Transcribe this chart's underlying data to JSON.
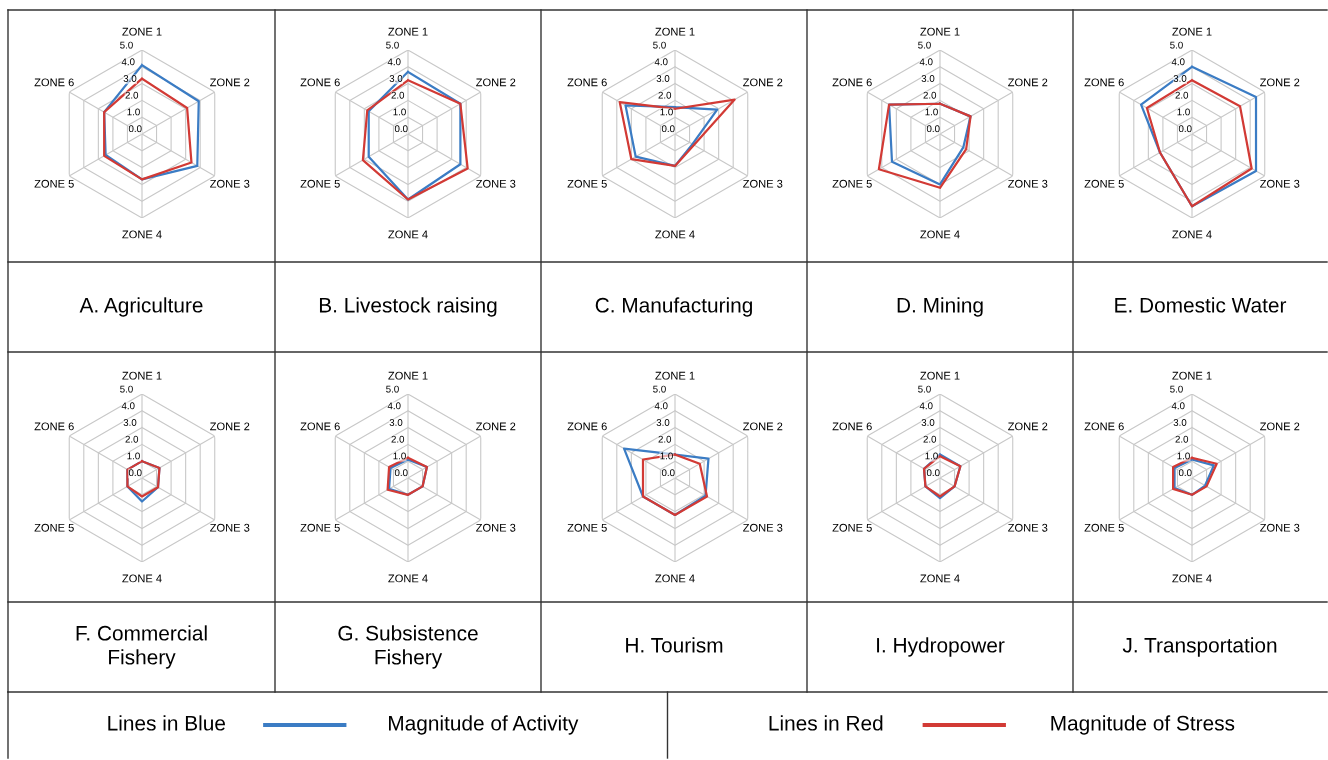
{
  "chart_data": [
    {
      "type": "radar",
      "title": "A. Agriculture",
      "categories": [
        "ZONE 1",
        "ZONE 2",
        "ZONE 3",
        "ZONE 4",
        "ZONE 5",
        "ZONE 6"
      ],
      "ylim": [
        0,
        5
      ],
      "yticks": [
        {
          "value": 0,
          "label": "0.0"
        },
        {
          "value": 1,
          "label": "1.0"
        },
        {
          "value": 2,
          "label": "2.0"
        },
        {
          "value": 3,
          "label": "3.0"
        },
        {
          "value": 4,
          "label": "4.0"
        },
        {
          "value": 5,
          "label": "5.0"
        }
      ],
      "grid": true,
      "series": [
        {
          "color": "#3b7cc4",
          "values": [
            4.1,
            3.9,
            3.8,
            2.7,
            2.5,
            2.6
          ]
        },
        {
          "color": "#d23a35",
          "values": [
            3.3,
            3.1,
            3.4,
            2.7,
            2.6,
            2.6
          ]
        }
      ]
    },
    {
      "type": "radar",
      "title": "B. Livestock raising",
      "categories": [
        "ZONE 1",
        "ZONE 2",
        "ZONE 3",
        "ZONE 4",
        "ZONE 5",
        "ZONE 6"
      ],
      "ylim": [
        0,
        5
      ],
      "yticks": [
        {
          "value": 0,
          "label": "0.0"
        },
        {
          "value": 1,
          "label": "1.0"
        },
        {
          "value": 2,
          "label": "2.0"
        },
        {
          "value": 3,
          "label": "3.0"
        },
        {
          "value": 4,
          "label": "4.0"
        },
        {
          "value": 5,
          "label": "5.0"
        }
      ],
      "grid": true,
      "series": [
        {
          "color": "#3b7cc4",
          "values": [
            3.7,
            3.6,
            3.6,
            3.9,
            2.7,
            2.7
          ]
        },
        {
          "color": "#d23a35",
          "values": [
            3.2,
            3.6,
            4.1,
            3.9,
            3.1,
            2.8
          ]
        }
      ]
    },
    {
      "type": "radar",
      "title": "C. Manufacturing",
      "categories": [
        "ZONE 1",
        "ZONE 2",
        "ZONE 3",
        "ZONE 4",
        "ZONE 5",
        "ZONE 6"
      ],
      "ylim": [
        0,
        5
      ],
      "yticks": [
        {
          "value": 0,
          "label": "0.0"
        },
        {
          "value": 1,
          "label": "1.0"
        },
        {
          "value": 2,
          "label": "2.0"
        },
        {
          "value": 3,
          "label": "3.0"
        },
        {
          "value": 4,
          "label": "4.0"
        },
        {
          "value": 5,
          "label": "5.0"
        }
      ],
      "grid": true,
      "series": [
        {
          "color": "#3b7cc4",
          "values": [
            1.6,
            2.9,
            1.2,
            1.9,
            2.7,
            3.4
          ]
        },
        {
          "color": "#d23a35",
          "values": [
            1.5,
            4.1,
            1.3,
            1.9,
            3.0,
            3.8
          ]
        }
      ]
    },
    {
      "type": "radar",
      "title": "D. Mining",
      "categories": [
        "ZONE 1",
        "ZONE 2",
        "ZONE 3",
        "ZONE 4",
        "ZONE 5",
        "ZONE 6"
      ],
      "ylim": [
        0,
        5
      ],
      "yticks": [
        {
          "value": 0,
          "label": "0.0"
        },
        {
          "value": 1,
          "label": "1.0"
        },
        {
          "value": 2,
          "label": "2.0"
        },
        {
          "value": 3,
          "label": "3.0"
        },
        {
          "value": 4,
          "label": "4.0"
        },
        {
          "value": 5,
          "label": "5.0"
        }
      ],
      "grid": true,
      "series": [
        {
          "color": "#3b7cc4",
          "values": [
            1.8,
            2.1,
            1.6,
            3.0,
            3.3,
            3.5
          ]
        },
        {
          "color": "#d23a35",
          "values": [
            1.8,
            2.1,
            1.8,
            3.2,
            4.2,
            3.5
          ]
        }
      ]
    },
    {
      "type": "radar",
      "title": "E. Domestic Water",
      "categories": [
        "ZONE 1",
        "ZONE 2",
        "ZONE 3",
        "ZONE 4",
        "ZONE 5",
        "ZONE 6"
      ],
      "ylim": [
        0,
        5
      ],
      "yticks": [
        {
          "value": 0,
          "label": "0.0"
        },
        {
          "value": 1,
          "label": "1.0"
        },
        {
          "value": 2,
          "label": "2.0"
        },
        {
          "value": 3,
          "label": "3.0"
        },
        {
          "value": 4,
          "label": "4.0"
        },
        {
          "value": 5,
          "label": "5.0"
        }
      ],
      "grid": true,
      "series": [
        {
          "color": "#3b7cc4",
          "values": [
            4.0,
            4.4,
            4.4,
            4.3,
            2.2,
            3.5
          ]
        },
        {
          "color": "#d23a35",
          "values": [
            3.2,
            3.3,
            4.1,
            4.3,
            2.2,
            3.1
          ]
        }
      ]
    },
    {
      "type": "radar",
      "title": "F. Commercial\nFishery",
      "categories": [
        "ZONE 1",
        "ZONE 2",
        "ZONE 3",
        "ZONE 4",
        "ZONE 5",
        "ZONE 6"
      ],
      "ylim": [
        0,
        5
      ],
      "yticks": [
        {
          "value": 0,
          "label": "0.0"
        },
        {
          "value": 1,
          "label": "1.0"
        },
        {
          "value": 2,
          "label": "2.0"
        },
        {
          "value": 3,
          "label": "3.0"
        },
        {
          "value": 4,
          "label": "4.0"
        },
        {
          "value": 5,
          "label": "5.0"
        }
      ],
      "grid": true,
      "series": [
        {
          "color": "#3b7cc4",
          "values": [
            1.0,
            1.2,
            1.1,
            1.4,
            1.0,
            1.0
          ]
        },
        {
          "color": "#d23a35",
          "values": [
            1.0,
            1.2,
            1.1,
            1.1,
            1.0,
            1.0
          ]
        }
      ]
    },
    {
      "type": "radar",
      "title": "G. Subsistence\nFishery",
      "categories": [
        "ZONE 1",
        "ZONE 2",
        "ZONE 3",
        "ZONE 4",
        "ZONE 5",
        "ZONE 6"
      ],
      "ylim": [
        0,
        5
      ],
      "yticks": [
        {
          "value": 0,
          "label": "0.0"
        },
        {
          "value": 1,
          "label": "1.0"
        },
        {
          "value": 2,
          "label": "2.0"
        },
        {
          "value": 3,
          "label": "3.0"
        },
        {
          "value": 4,
          "label": "4.0"
        },
        {
          "value": 5,
          "label": "5.0"
        }
      ],
      "grid": true,
      "series": [
        {
          "color": "#3b7cc4",
          "values": [
            1.1,
            1.3,
            1.0,
            1.0,
            1.3,
            1.2
          ]
        },
        {
          "color": "#d23a35",
          "values": [
            1.2,
            1.3,
            1.0,
            1.0,
            1.4,
            1.3
          ]
        }
      ]
    },
    {
      "type": "radar",
      "title": "H. Tourism",
      "categories": [
        "ZONE 1",
        "ZONE 2",
        "ZONE 3",
        "ZONE 4",
        "ZONE 5",
        "ZONE 6"
      ],
      "ylim": [
        0,
        5
      ],
      "yticks": [
        {
          "value": 0,
          "label": "0.0"
        },
        {
          "value": 1,
          "label": "1.0"
        },
        {
          "value": 2,
          "label": "2.0"
        },
        {
          "value": 3,
          "label": "3.0"
        },
        {
          "value": 4,
          "label": "4.0"
        },
        {
          "value": 5,
          "label": "5.0"
        }
      ],
      "grid": true,
      "series": [
        {
          "color": "#3b7cc4",
          "values": [
            1.4,
            2.3,
            2.1,
            2.2,
            2.2,
            3.5
          ]
        },
        {
          "color": "#d23a35",
          "values": [
            1.4,
            1.7,
            2.2,
            2.2,
            2.2,
            2.2
          ]
        }
      ]
    },
    {
      "type": "radar",
      "title": "I. Hydropower",
      "categories": [
        "ZONE 1",
        "ZONE 2",
        "ZONE 3",
        "ZONE 4",
        "ZONE 5",
        "ZONE 6"
      ],
      "ylim": [
        0,
        5
      ],
      "yticks": [
        {
          "value": 0,
          "label": "0.0"
        },
        {
          "value": 1,
          "label": "1.0"
        },
        {
          "value": 2,
          "label": "2.0"
        },
        {
          "value": 3,
          "label": "3.0"
        },
        {
          "value": 4,
          "label": "4.0"
        },
        {
          "value": 5,
          "label": "5.0"
        }
      ],
      "grid": true,
      "series": [
        {
          "color": "#3b7cc4",
          "values": [
            1.4,
            1.4,
            1.0,
            1.2,
            1.0,
            1.1
          ]
        },
        {
          "color": "#d23a35",
          "values": [
            1.3,
            1.4,
            1.0,
            1.1,
            1.0,
            1.1
          ]
        }
      ]
    },
    {
      "type": "radar",
      "title": "J. Transportation",
      "categories": [
        "ZONE 1",
        "ZONE 2",
        "ZONE 3",
        "ZONE 4",
        "ZONE 5",
        "ZONE 6"
      ],
      "ylim": [
        0,
        5
      ],
      "yticks": [
        {
          "value": 0,
          "label": "0.0"
        },
        {
          "value": 1,
          "label": "1.0"
        },
        {
          "value": 2,
          "label": "2.0"
        },
        {
          "value": 3,
          "label": "3.0"
        },
        {
          "value": 4,
          "label": "4.0"
        },
        {
          "value": 5,
          "label": "5.0"
        }
      ],
      "grid": true,
      "legend": "bottom",
      "annotations": [
        "Lines in Blue",
        "Lines in Red"
      ],
      "series": [
        {
          "name": "Magnitude of Activity",
          "color": "#3b7cc4",
          "values": [
            1.1,
            1.5,
            0.9,
            1.0,
            1.2,
            1.2
          ]
        },
        {
          "name": "Magnitude of Stress",
          "color": "#d23a35",
          "values": [
            1.2,
            1.7,
            1.0,
            1.0,
            1.3,
            1.3
          ]
        }
      ]
    }
  ]
}
